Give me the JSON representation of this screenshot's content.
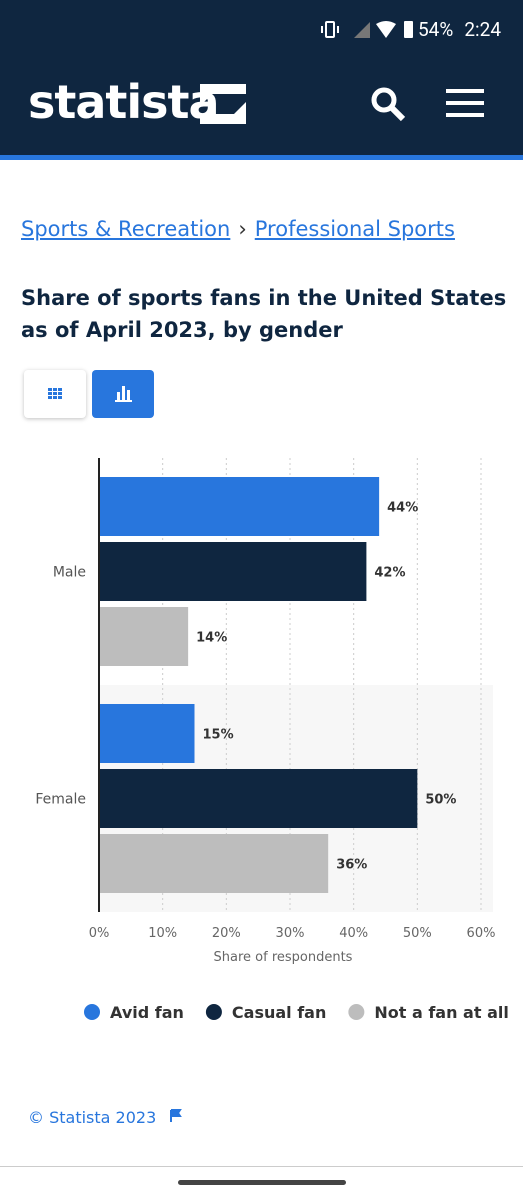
{
  "status_bar": {
    "battery": "54%",
    "time": "2:24"
  },
  "header": {
    "logo": "statista"
  },
  "breadcrumb": {
    "items": [
      "Sports & Recreation",
      "Professional Sports"
    ],
    "separator": "›"
  },
  "chart_data": {
    "type": "bar",
    "orientation": "horizontal",
    "title": "Share of sports fans in the United States as of April 2023, by gender",
    "categories": [
      "Male",
      "Female"
    ],
    "series": [
      {
        "name": "Avid fan",
        "color": "#2876dd",
        "values": [
          44,
          15
        ],
        "value_labels": [
          "44%",
          "15%"
        ]
      },
      {
        "name": "Casual fan",
        "color": "#0f2640",
        "values": [
          42,
          50
        ],
        "value_labels": [
          "42%",
          "50%"
        ]
      },
      {
        "name": "Not a fan at all",
        "color": "#bdbdbd",
        "values": [
          14,
          36
        ],
        "value_labels": [
          "14%",
          "36%"
        ]
      }
    ],
    "xlabel": "Share of respondents",
    "xlim": [
      0,
      60
    ],
    "xticks": [
      {
        "value": 0,
        "label": "0%"
      },
      {
        "value": 10,
        "label": "10%"
      },
      {
        "value": 20,
        "label": "20%"
      },
      {
        "value": 30,
        "label": "30%"
      },
      {
        "value": 40,
        "label": "40%"
      },
      {
        "value": 50,
        "label": "50%"
      },
      {
        "value": 60,
        "label": "60%"
      }
    ],
    "grid": true
  },
  "footer": {
    "copyright": "© Statista 2023"
  }
}
